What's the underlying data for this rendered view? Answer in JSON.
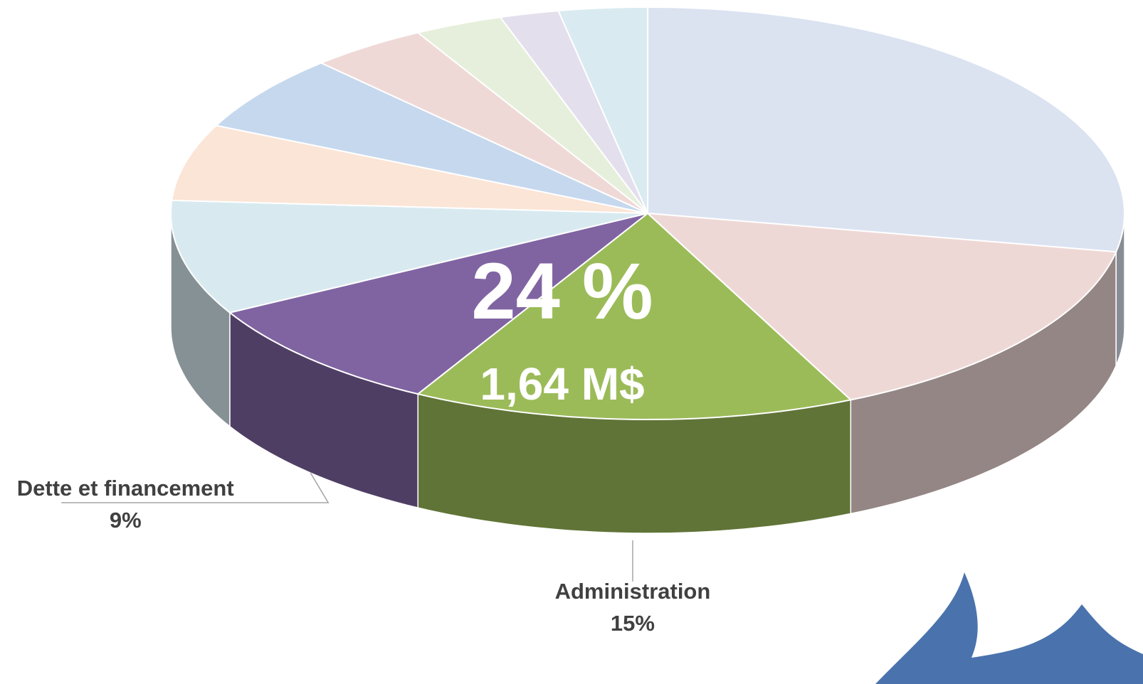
{
  "chart_data": {
    "type": "pie",
    "categories": [
      null,
      null,
      "Administration",
      "Dette et financement",
      null,
      null,
      null,
      null,
      null,
      null,
      null
    ],
    "values": [
      28,
      15,
      15,
      9,
      9,
      6,
      6,
      4,
      3,
      2,
      3
    ],
    "value_labels": [
      null,
      null,
      "15%",
      "9%",
      null,
      null,
      null,
      null,
      null,
      null,
      null
    ],
    "colors": [
      "#dbe3f1",
      "#eed8d6",
      "#9bbb59",
      "#8064a2",
      "#d8eaf0",
      "#fbe5d6",
      "#c5d8ee",
      "#efd9d7",
      "#e6efdb",
      "#e3dfec",
      "#d9ebf0"
    ],
    "annotations": [
      "24 %",
      "1,64 M$"
    ]
  }
}
